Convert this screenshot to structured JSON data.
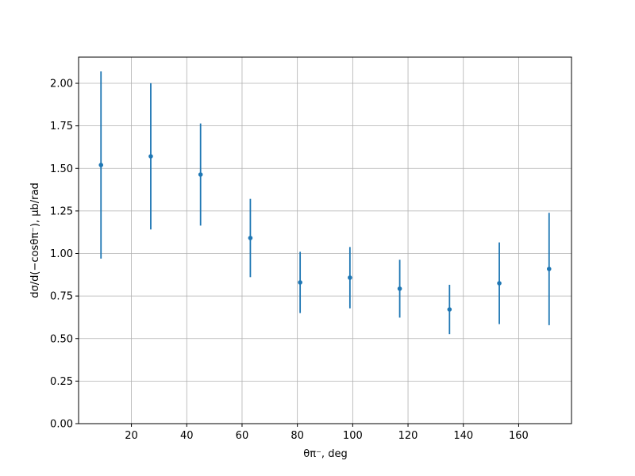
{
  "chart_data": {
    "type": "errorbar",
    "xlabel": "θπ⁻, deg",
    "ylabel": "dσ/d(−cosθπ⁻), μb/rad",
    "x": [
      9,
      27,
      45,
      63,
      81,
      99,
      117,
      135,
      153,
      171
    ],
    "values": [
      1.52,
      1.571,
      1.464,
      1.091,
      0.83,
      0.858,
      0.793,
      0.671,
      0.825,
      0.909
    ],
    "errors": [
      0.55,
      0.43,
      0.3,
      0.23,
      0.18,
      0.18,
      0.17,
      0.145,
      0.24,
      0.33
    ],
    "color": "#1f77b4",
    "xlim": [
      0.9,
      179.1
    ],
    "ylim": [
      0,
      2.154
    ],
    "xticks": [
      20,
      40,
      60,
      80,
      100,
      120,
      140,
      160
    ],
    "yticks": [
      {
        "value": 0,
        "label": "0.00"
      },
      {
        "value": 0.25,
        "label": "0.25"
      },
      {
        "value": 0.5,
        "label": "0.50"
      },
      {
        "value": 0.75,
        "label": "0.75"
      },
      {
        "value": 1,
        "label": "1.00"
      },
      {
        "value": 1.25,
        "label": "1.25"
      },
      {
        "value": 1.5,
        "label": "1.50"
      },
      {
        "value": 1.75,
        "label": "1.75"
      },
      {
        "value": 2,
        "label": "2.00"
      }
    ],
    "grid": true
  }
}
